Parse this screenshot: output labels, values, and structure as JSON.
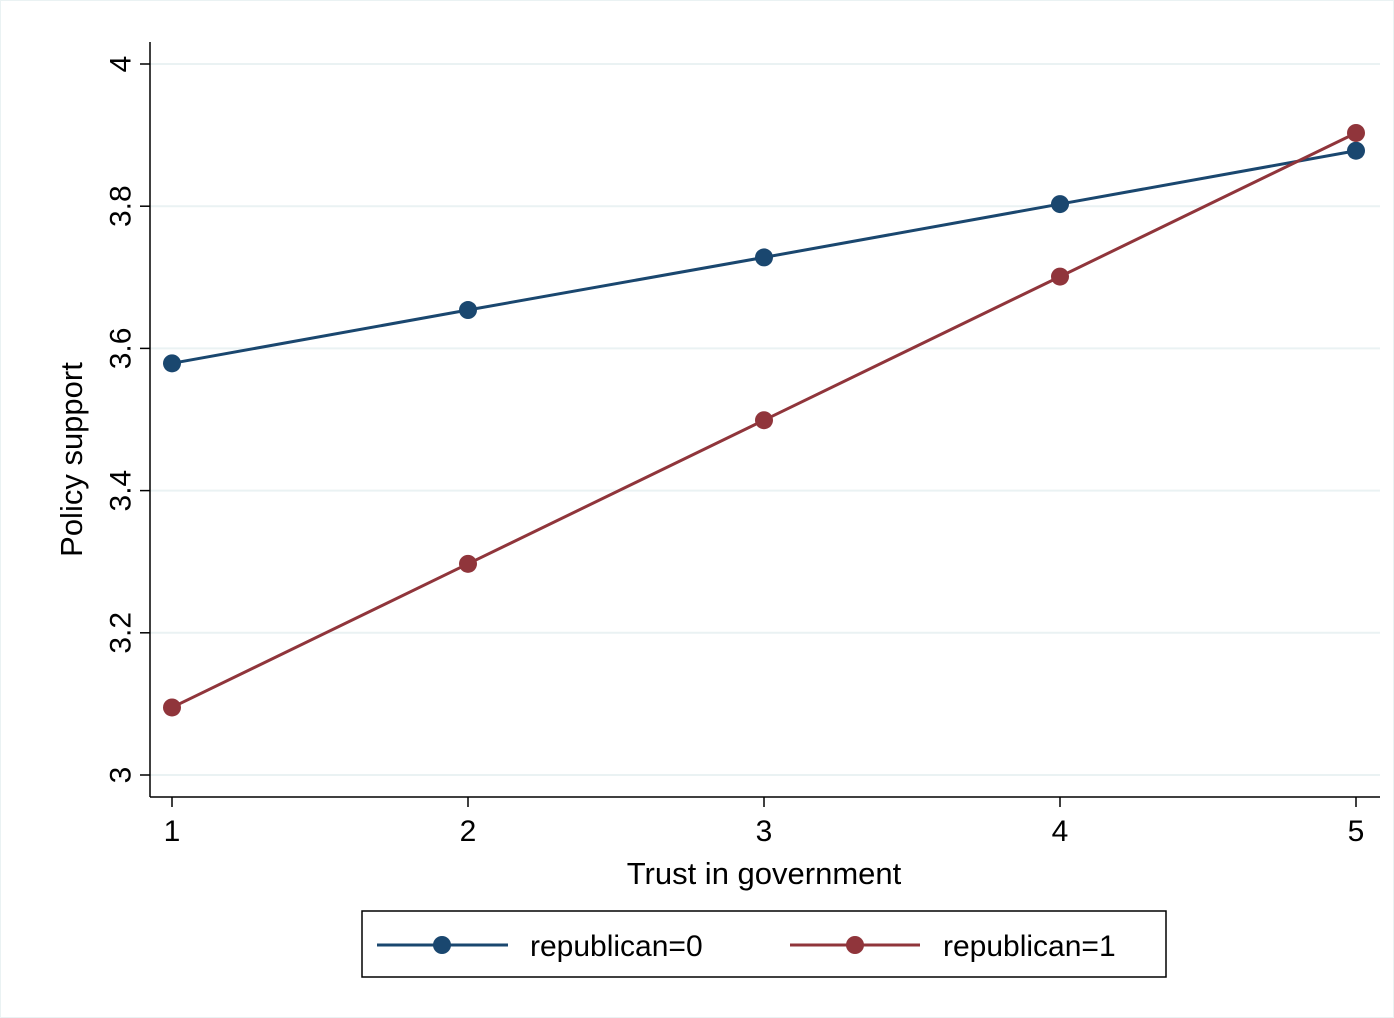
{
  "chart_data": {
    "type": "line",
    "title": "",
    "xlabel": "Trust in government",
    "ylabel": "Policy support",
    "x": [
      1,
      2,
      3,
      4,
      5
    ],
    "xticks": [
      "1",
      "2",
      "3",
      "4",
      "5"
    ],
    "yticks": [
      "3",
      "3.2",
      "3.4",
      "3.6",
      "3.8",
      "4"
    ],
    "xlim": [
      1,
      5
    ],
    "ylim": [
      3,
      4
    ],
    "grid": true,
    "legend_position": "bottom",
    "series": [
      {
        "name": "republican=0",
        "color": "#1a476f",
        "values": [
          3.579,
          3.654,
          3.728,
          3.803,
          3.878
        ]
      },
      {
        "name": "republican=1",
        "color": "#90353b",
        "values": [
          3.095,
          3.297,
          3.499,
          3.701,
          3.903
        ]
      }
    ]
  }
}
